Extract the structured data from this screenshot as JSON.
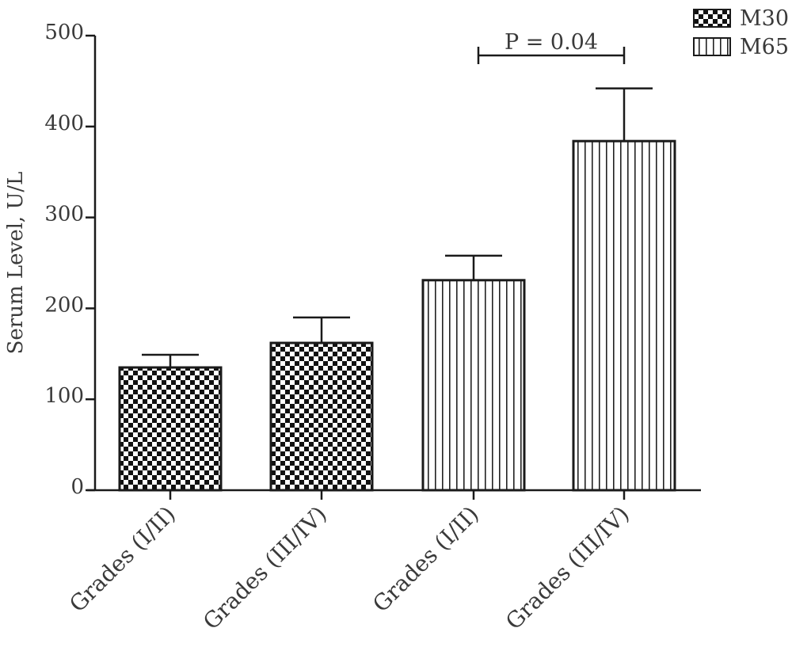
{
  "chart_data": {
    "type": "bar",
    "ylabel": "Serum Level, U/L",
    "xlabel": "",
    "ylim": [
      0,
      500
    ],
    "yticks": [
      0,
      100,
      200,
      300,
      400,
      500
    ],
    "grid": false,
    "legend_position": "top-right",
    "categories": [
      "Grades (I/II)",
      "Grades (III/IV)",
      "Grades (I/II)",
      "Grades (III/IV)"
    ],
    "bars": [
      {
        "category": "Grades (I/II)",
        "series": "M30",
        "value": 135,
        "error": 14
      },
      {
        "category": "Grades (III/IV)",
        "series": "M30",
        "value": 162,
        "error": 28
      },
      {
        "category": "Grades (I/II)",
        "series": "M65",
        "value": 231,
        "error": 27
      },
      {
        "category": "Grades (III/IV)",
        "series": "M65",
        "value": 384,
        "error": 58
      }
    ],
    "series": [
      {
        "name": "M30",
        "pattern": "checkered",
        "values": [
          135,
          162,
          null,
          null
        ]
      },
      {
        "name": "M65",
        "pattern": "vertical-stripes",
        "values": [
          null,
          null,
          231,
          384
        ]
      }
    ],
    "annotations": [
      {
        "text": "P = 0.04",
        "from_bar": 2,
        "to_bar": 3
      }
    ],
    "colors": {
      "ink": "#1a1a1a",
      "text": "#3a3a3a",
      "background": "#ffffff"
    }
  }
}
